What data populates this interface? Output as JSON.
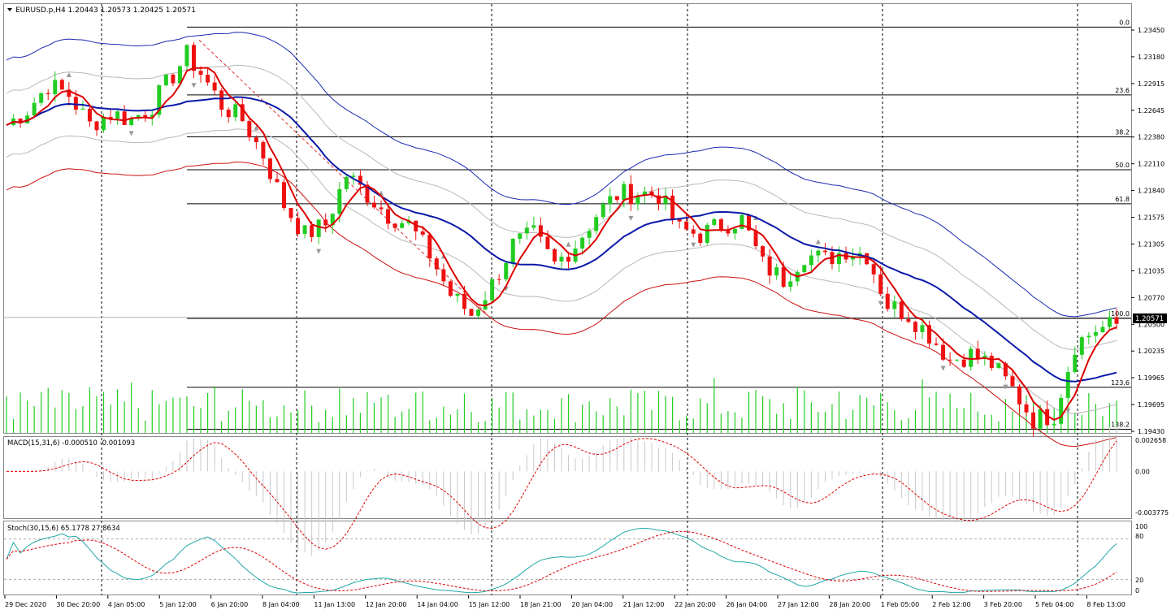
{
  "main": {
    "title": "EURUSD.p,H4  1.20443 1.20573 1.20425 1.20571",
    "price_axis": [
      "1.23450",
      "1.23180",
      "1.22915",
      "1.22645",
      "1.22380",
      "1.22110",
      "1.21840",
      "1.21575",
      "1.21305",
      "1.21035",
      "1.20770",
      "1.20500",
      "1.20235",
      "1.19965",
      "1.19695",
      "1.19430"
    ],
    "current_price": "1.20571",
    "fib_levels": [
      {
        "label": "0.0",
        "price": 1.2348
      },
      {
        "label": "23.6",
        "price": 1.228
      },
      {
        "label": "38.2",
        "price": 1.2238
      },
      {
        "label": "50.0",
        "price": 1.2205
      },
      {
        "label": "61.8",
        "price": 1.2171
      },
      {
        "label": "100.0",
        "price": 1.2056
      },
      {
        "label": "123.6",
        "price": 1.1987
      },
      {
        "label": "138.2",
        "price": 1.1945
      }
    ],
    "colors": {
      "bull": "#22cc22",
      "bear": "#ee1111",
      "ma_fast": "#dd0000",
      "ma_mid": "#0a1aa8",
      "env_outer_top": "#1a2ab0",
      "env_outer_bottom": "#cc1111",
      "env_inner": "#b8b8b8",
      "volume": "#22cc22",
      "fib": "#000000"
    }
  },
  "macd": {
    "title": "MACD(15,31,6) -0.000510 -0.001093",
    "axis": [
      "0.002658",
      "0.00",
      "-0.003775"
    ]
  },
  "stoch": {
    "title": "Stoch(30,15,6) 65.1778 27.8634",
    "axis": [
      "100",
      "80",
      "20",
      "0"
    ]
  },
  "time_axis": [
    "29 Dec 2020",
    "30 Dec 20:00",
    "4 Jan 05:00",
    "5 Jan 12:00",
    "6 Jan 20:00",
    "8 Jan 04:00",
    "11 Jan 13:00",
    "12 Jan 20:00",
    "14 Jan 04:00",
    "15 Jan 12:00",
    "18 Jan 21:00",
    "20 Jan 04:00",
    "21 Jan 12:00",
    "22 Jan 20:00",
    "26 Jan 04:00",
    "27 Jan 12:00",
    "28 Jan 20:00",
    "1 Feb 05:00",
    "2 Feb 12:00",
    "3 Feb 20:00",
    "5 Feb 04:00",
    "8 Feb 13:00"
  ],
  "chart_data": {
    "type": "candlestick",
    "symbol": "EURUSD.p",
    "timeframe": "H4",
    "ohlc_last": {
      "open": 1.20443,
      "high": 1.20573,
      "low": 1.20425,
      "close": 1.20571
    },
    "close_path": [
      [
        0,
        1.225
      ],
      [
        3,
        1.2265
      ],
      [
        6,
        1.229
      ],
      [
        9,
        1.228
      ],
      [
        12,
        1.225
      ],
      [
        15,
        1.2262
      ],
      [
        18,
        1.2255
      ],
      [
        21,
        1.227
      ],
      [
        24,
        1.23
      ],
      [
        26,
        1.232
      ],
      [
        28,
        1.2302
      ],
      [
        31,
        1.227
      ],
      [
        34,
        1.2255
      ],
      [
        37,
        1.222
      ],
      [
        40,
        1.217
      ],
      [
        43,
        1.214
      ],
      [
        46,
        1.215
      ],
      [
        49,
        1.22
      ],
      [
        52,
        1.218
      ],
      [
        55,
        1.216
      ],
      [
        58,
        1.215
      ],
      [
        61,
        1.212
      ],
      [
        64,
        1.208
      ],
      [
        67,
        1.206
      ],
      [
        70,
        1.209
      ],
      [
        73,
        1.213
      ],
      [
        76,
        1.214
      ],
      [
        79,
        1.211
      ],
      [
        82,
        1.213
      ],
      [
        85,
        1.216
      ],
      [
        88,
        1.218
      ],
      [
        91,
        1.2182
      ],
      [
        94,
        1.218
      ],
      [
        97,
        1.2145
      ],
      [
        100,
        1.214
      ],
      [
        103,
        1.215
      ],
      [
        106,
        1.2155
      ],
      [
        109,
        1.211
      ],
      [
        112,
        1.2095
      ],
      [
        115,
        1.212
      ],
      [
        118,
        1.2115
      ],
      [
        121,
        1.2125
      ],
      [
        124,
        1.212
      ],
      [
        127,
        1.207
      ],
      [
        130,
        1.206
      ],
      [
        133,
        1.204
      ],
      [
        136,
        1.2015
      ],
      [
        139,
        1.202
      ],
      [
        142,
        1.201
      ],
      [
        145,
        1.1985
      ],
      [
        148,
        1.1955
      ],
      [
        151,
        1.196
      ],
      [
        154,
        1.203
      ],
      [
        157,
        1.2045
      ],
      [
        160,
        1.205
      ]
    ],
    "macd_axis_range": [
      -0.003775,
      0.002658
    ],
    "stoch_axis_range": [
      0,
      100
    ]
  }
}
